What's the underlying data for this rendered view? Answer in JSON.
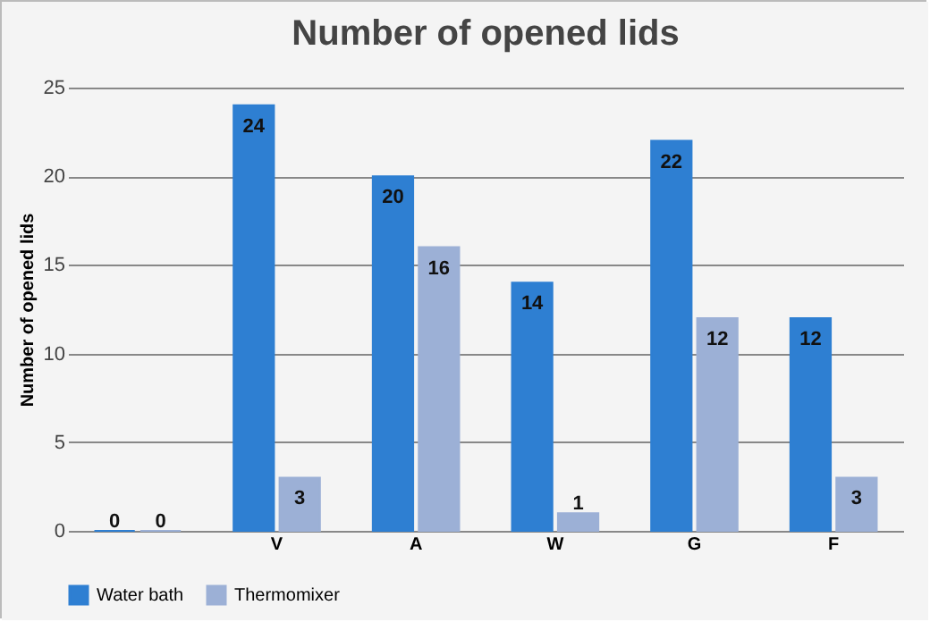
{
  "chart_data": {
    "type": "bar",
    "title": "Number of opened lids",
    "ylabel": "Number of opened lids",
    "categories": [
      null,
      "V",
      "A",
      "W",
      "G",
      "F"
    ],
    "series": [
      {
        "name": "Water bath",
        "color": "#2e7fd2",
        "values": [
          0,
          24,
          20,
          14,
          22,
          12
        ]
      },
      {
        "name": "Thermomixer",
        "color": "#9cb0d6",
        "values": [
          0,
          3,
          16,
          1,
          12,
          3
        ]
      }
    ],
    "ylim": [
      0,
      25
    ],
    "yticks": [
      0,
      5,
      10,
      15,
      20,
      25
    ],
    "grid": "y",
    "legend": "bottom",
    "data_labels": true
  }
}
